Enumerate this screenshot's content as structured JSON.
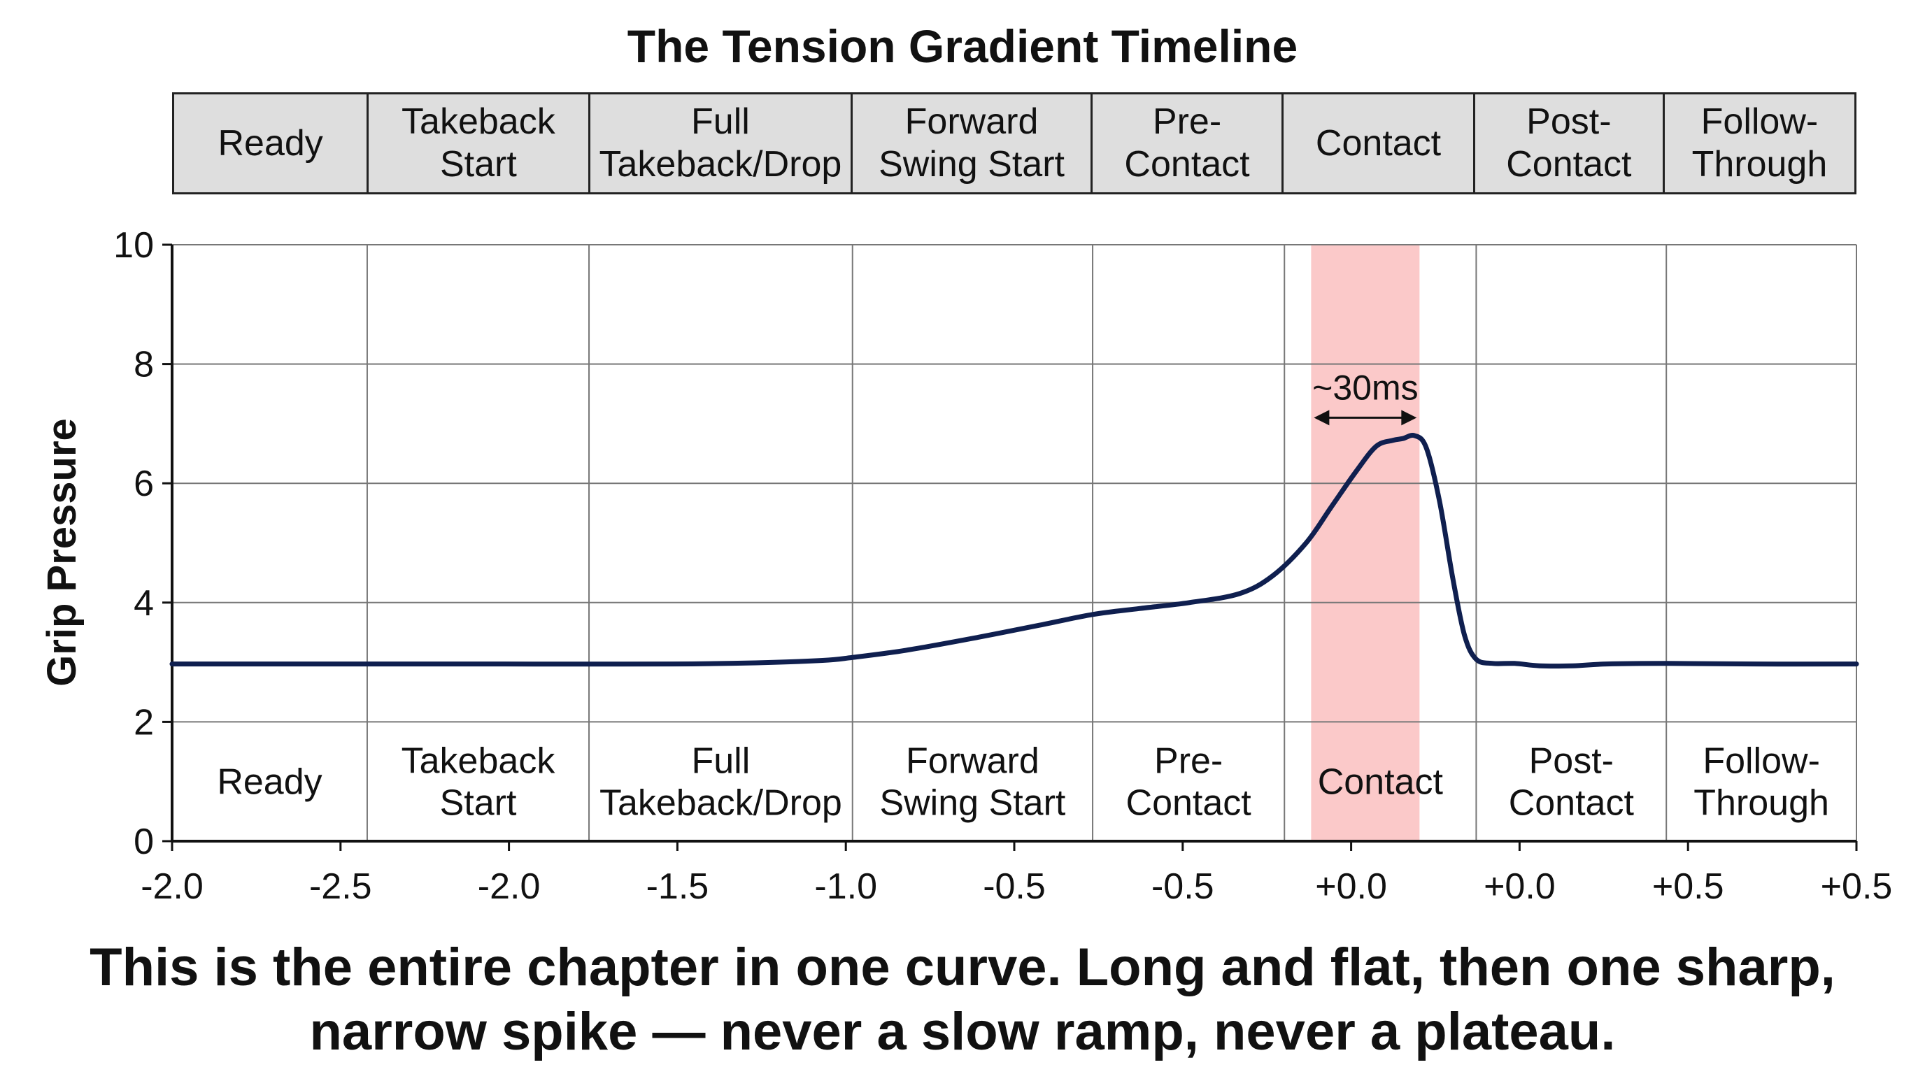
{
  "caption": "This is the entire chapter in one curve. Long and flat, then one sharp, narrow spike — never a slow ramp, never a plateau.",
  "chart_data": {
    "type": "line",
    "title": "The Tension Gradient Timeline",
    "ylabel": "Grip Pressure",
    "xlabel": "",
    "ylim": [
      0,
      10
    ],
    "yticks": [
      0,
      2,
      4,
      6,
      8,
      10
    ],
    "x_tick_labels": [
      "-2.0",
      "-2.5",
      "-2.0",
      "-1.5",
      "-1.0",
      "-0.5",
      "-0.5",
      "+0.0",
      "+0.0",
      "+0.5",
      "+0.5"
    ],
    "grid": true,
    "phases": [
      {
        "label": "Ready"
      },
      {
        "label": "Takeback\nStart"
      },
      {
        "label": "Full\nTakeback/Drop"
      },
      {
        "label": "Forward\nSwing Start"
      },
      {
        "label": "Pre-\nContact"
      },
      {
        "label": "Contact"
      },
      {
        "label": "Post-\nContact"
      },
      {
        "label": "Follow-\nThrough"
      }
    ],
    "phase_boundaries": [
      0,
      1.17,
      2.5,
      4.08,
      5.52,
      6.67,
      7.82,
      8.96,
      10.1
    ],
    "highlight": {
      "label": "Contact",
      "x_start": 6.83,
      "x_end": 7.48,
      "color": "#fbc9c9"
    },
    "annotation": {
      "text": "~30ms",
      "x_start": 6.83,
      "x_end": 7.48,
      "y": 7.1
    },
    "series_color": "#0f1f4f",
    "points": [
      [
        0,
        2.97
      ],
      [
        1.0,
        2.97
      ],
      [
        2.0,
        2.97
      ],
      [
        3.0,
        2.97
      ],
      [
        3.5,
        2.99
      ],
      [
        3.9,
        3.03
      ],
      [
        4.08,
        3.08
      ],
      [
        4.4,
        3.2
      ],
      [
        4.8,
        3.4
      ],
      [
        5.2,
        3.62
      ],
      [
        5.52,
        3.8
      ],
      [
        5.8,
        3.9
      ],
      [
        6.1,
        4.0
      ],
      [
        6.4,
        4.15
      ],
      [
        6.6,
        4.45
      ],
      [
        6.8,
        5.0
      ],
      [
        6.95,
        5.6
      ],
      [
        7.1,
        6.2
      ],
      [
        7.22,
        6.62
      ],
      [
        7.32,
        6.72
      ],
      [
        7.38,
        6.75
      ],
      [
        7.45,
        6.8
      ],
      [
        7.52,
        6.6
      ],
      [
        7.6,
        5.7
      ],
      [
        7.68,
        4.4
      ],
      [
        7.75,
        3.45
      ],
      [
        7.82,
        3.05
      ],
      [
        7.92,
        2.98
      ],
      [
        8.05,
        2.98
      ],
      [
        8.2,
        2.94
      ],
      [
        8.4,
        2.94
      ],
      [
        8.6,
        2.97
      ],
      [
        8.96,
        2.98
      ],
      [
        9.5,
        2.97
      ],
      [
        10.1,
        2.97
      ]
    ]
  }
}
